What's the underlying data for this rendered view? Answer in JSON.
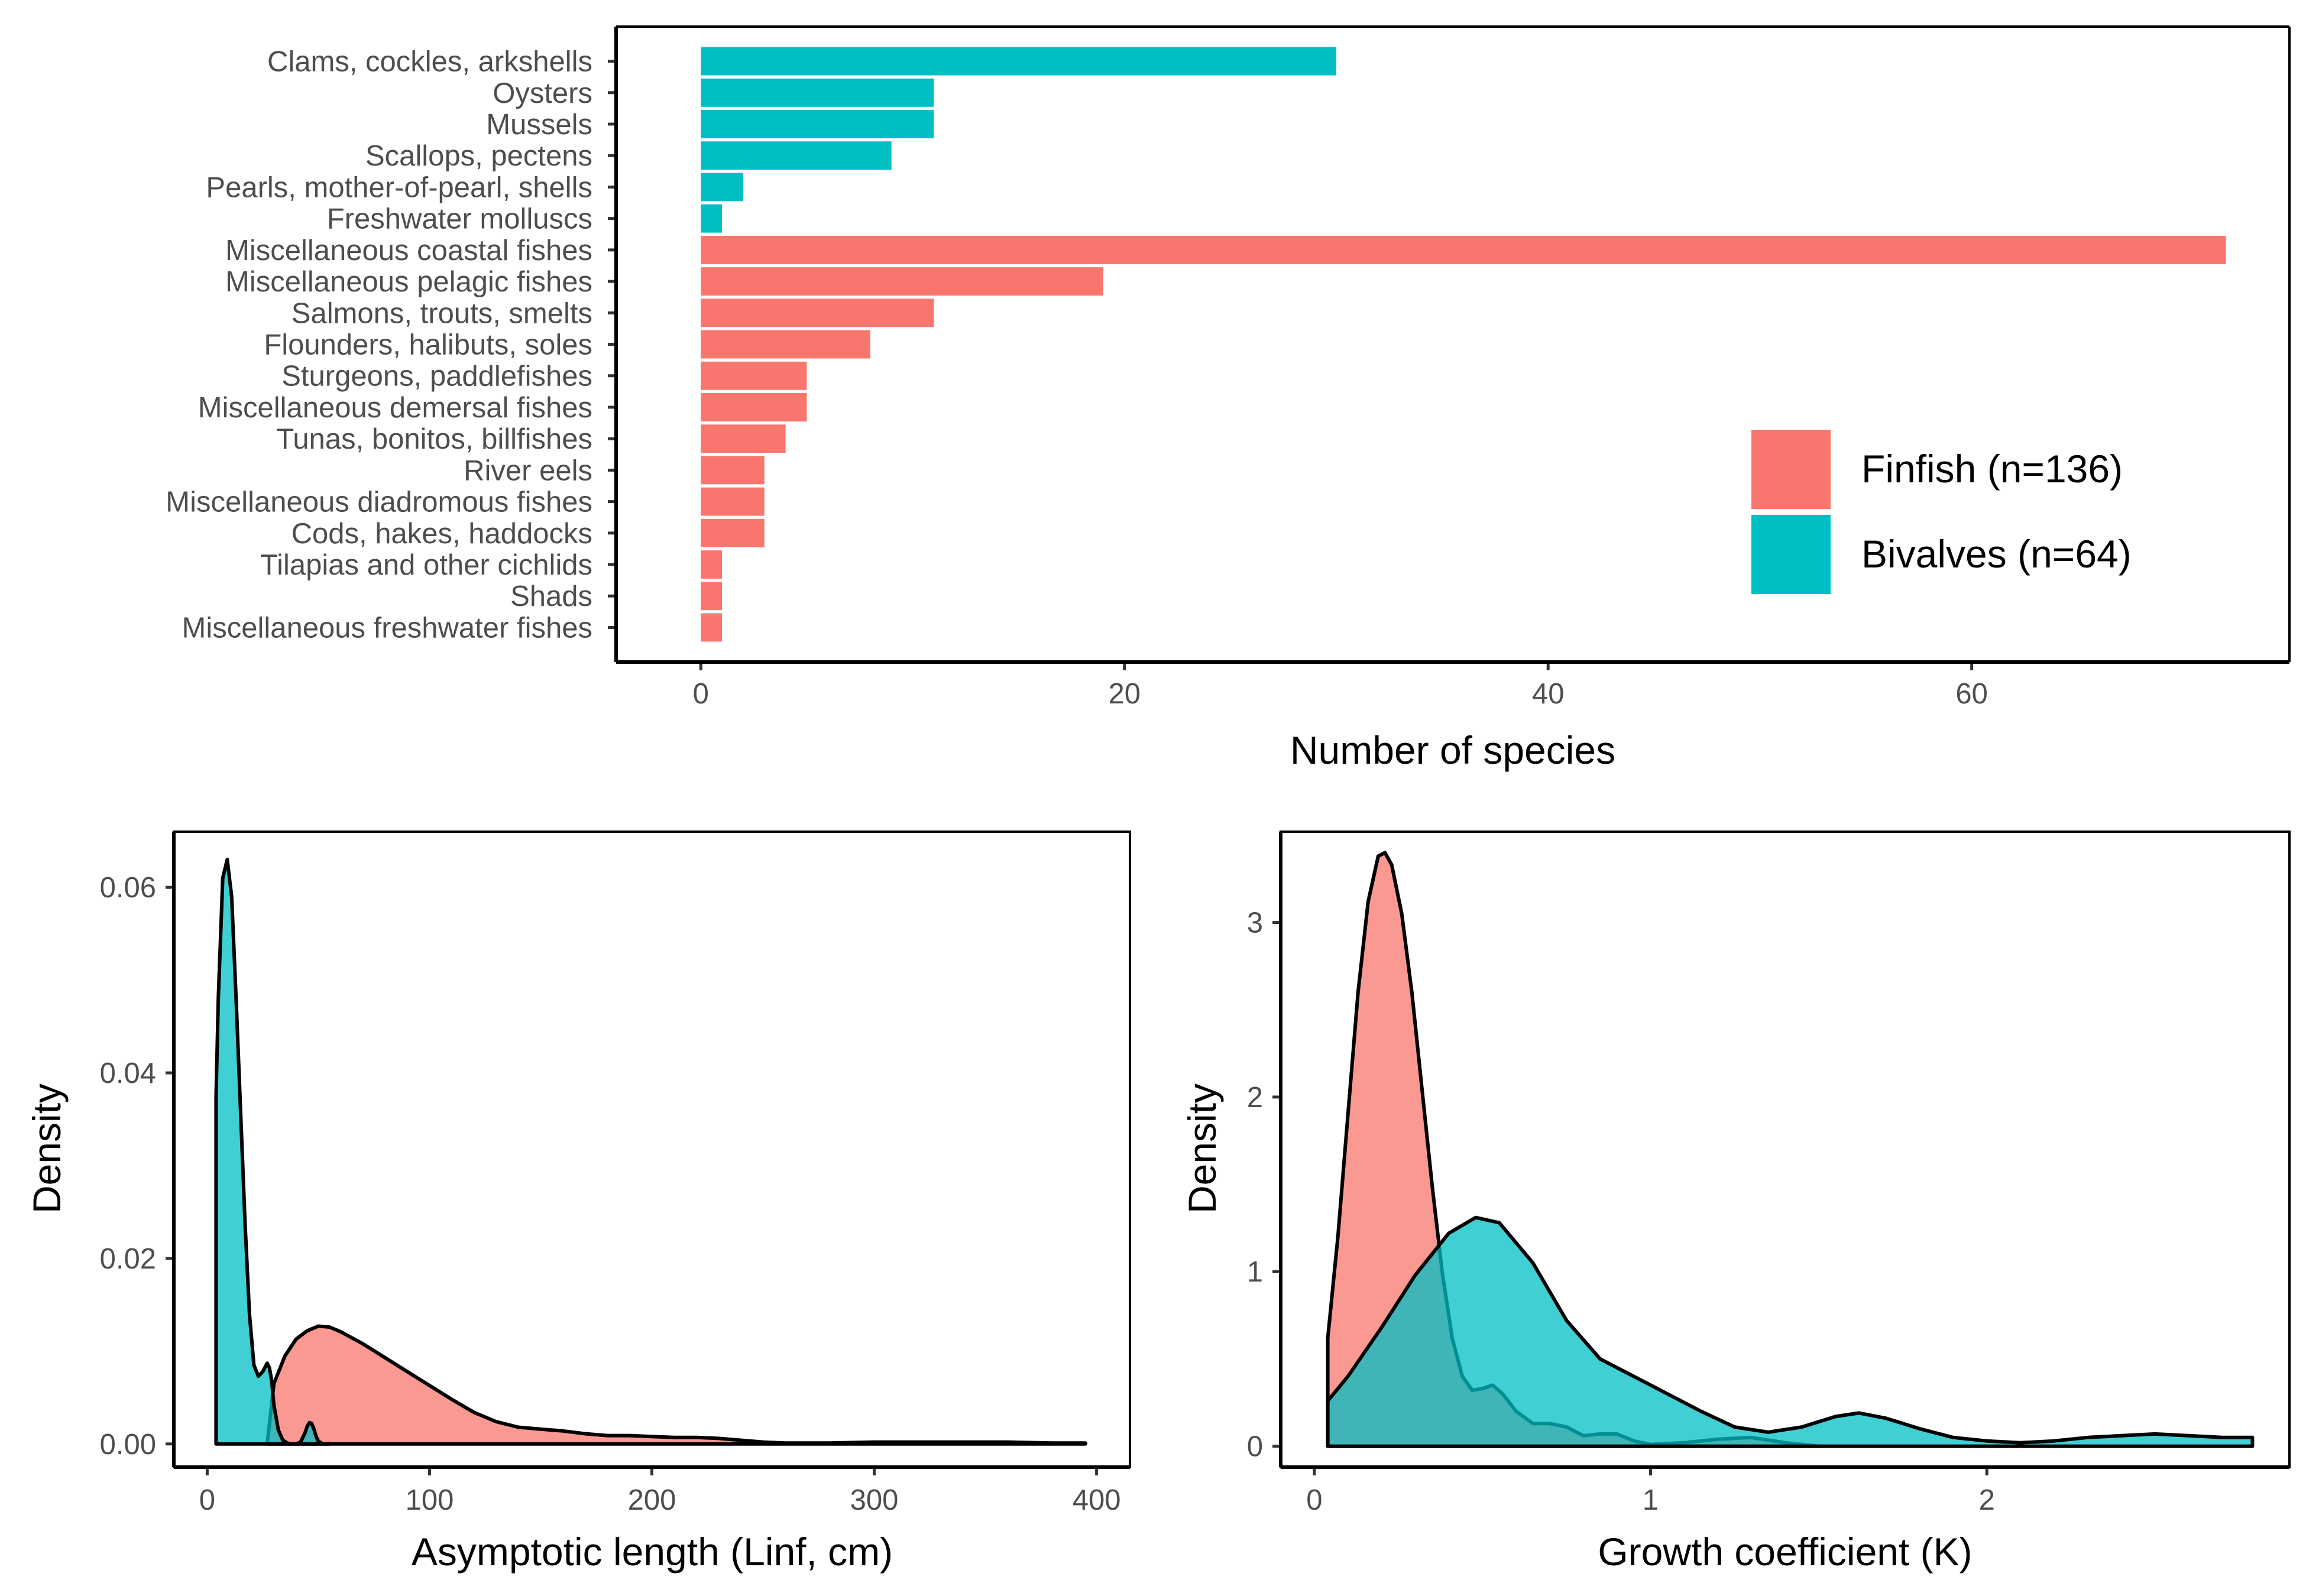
{
  "colors": {
    "finfish": "#F8766D",
    "bivalves": "#00BFC4",
    "outline": "#000000",
    "tick_text": "#4d4d4d"
  },
  "legend": {
    "position": "bottom-right",
    "items": [
      {
        "key": "finfish",
        "label": "Finfish (n=136)"
      },
      {
        "key": "bivalves",
        "label": "Bivalves (n=64)"
      }
    ]
  },
  "chart_data": [
    {
      "type": "bar",
      "orientation": "horizontal",
      "xlabel": "Number of species",
      "ylabel": "",
      "xlim": [
        -4,
        75
      ],
      "xticks": [
        0,
        20,
        40,
        60
      ],
      "grid": false,
      "categories": [
        "Clams, cockles, arkshells",
        "Oysters",
        "Mussels",
        "Scallops, pectens",
        "Pearls, mother-of-pearl, shells",
        "Freshwater molluscs",
        "Miscellaneous coastal fishes",
        "Miscellaneous pelagic fishes",
        "Salmons, trouts, smelts",
        "Flounders, halibuts, soles",
        "Sturgeons, paddlefishes",
        "Miscellaneous demersal fishes",
        "Tunas, bonitos, billfishes",
        "River eels",
        "Miscellaneous diadromous fishes",
        "Cods, hakes, haddocks",
        "Tilapias and other cichlids",
        "Shads",
        "Miscellaneous freshwater fishes"
      ],
      "values": [
        30,
        11,
        11,
        9,
        2,
        1,
        72,
        19,
        11,
        8,
        5,
        5,
        4,
        3,
        3,
        3,
        1,
        1,
        1
      ],
      "group": [
        "bivalves",
        "bivalves",
        "bivalves",
        "bivalves",
        "bivalves",
        "bivalves",
        "finfish",
        "finfish",
        "finfish",
        "finfish",
        "finfish",
        "finfish",
        "finfish",
        "finfish",
        "finfish",
        "finfish",
        "finfish",
        "finfish",
        "finfish"
      ]
    },
    {
      "type": "area",
      "subtype": "density",
      "xlabel": "Asymptotic length (Linf, cm)",
      "ylabel": "Density",
      "xlim": [
        -15,
        415
      ],
      "ylim": [
        -0.0025,
        0.066
      ],
      "xticks": [
        0,
        100,
        200,
        300,
        400
      ],
      "yticks": [
        0.0,
        0.02,
        0.04,
        0.06
      ],
      "ytick_labels": [
        "0.00",
        "0.02",
        "0.04",
        "0.06"
      ],
      "grid": false,
      "series": [
        {
          "key": "finfish",
          "x": [
            27,
            30,
            35,
            40,
            45,
            50,
            55,
            60,
            70,
            80,
            90,
            100,
            110,
            120,
            130,
            140,
            150,
            160,
            170,
            180,
            190,
            200,
            210,
            220,
            230,
            240,
            250,
            260,
            280,
            300,
            320,
            340,
            360,
            380,
            395
          ],
          "y": [
            0.0,
            0.0065,
            0.0095,
            0.0113,
            0.0122,
            0.0127,
            0.0126,
            0.0121,
            0.0108,
            0.0093,
            0.0078,
            0.0063,
            0.0048,
            0.0034,
            0.0024,
            0.0018,
            0.0016,
            0.0014,
            0.0011,
            0.0009,
            0.0009,
            0.0008,
            0.0007,
            0.0007,
            0.0006,
            0.0004,
            0.0002,
            0.0001,
            0.0001,
            0.0002,
            0.0002,
            0.0002,
            0.0002,
            0.0001,
            0.0001
          ]
        },
        {
          "key": "bivalves",
          "x": [
            4,
            5,
            7,
            9,
            11,
            13,
            15,
            17,
            19,
            21,
            23,
            25,
            27,
            28,
            29,
            30,
            32,
            34,
            36,
            38,
            40,
            42,
            44,
            45,
            46,
            47,
            48,
            49,
            50,
            52,
            55
          ],
          "y": [
            0.0375,
            0.048,
            0.061,
            0.063,
            0.059,
            0.048,
            0.036,
            0.024,
            0.014,
            0.0085,
            0.0073,
            0.0078,
            0.0087,
            0.0082,
            0.0068,
            0.0042,
            0.0015,
            0.0004,
            0.0001,
            0.0,
            0.0,
            0.0002,
            0.0012,
            0.0019,
            0.0023,
            0.0022,
            0.0016,
            0.0008,
            0.0003,
            0.0,
            0.0
          ]
        }
      ]
    },
    {
      "type": "area",
      "subtype": "density",
      "xlabel": "Growth coefficient (K)",
      "ylabel": "Density",
      "xlim": [
        -0.1,
        2.9
      ],
      "ylim": [
        -0.12,
        3.52
      ],
      "xticks": [
        0,
        1,
        2
      ],
      "yticks": [
        0,
        1,
        2,
        3
      ],
      "grid": false,
      "series": [
        {
          "key": "finfish",
          "x": [
            0.04,
            0.07,
            0.1,
            0.13,
            0.16,
            0.19,
            0.21,
            0.23,
            0.26,
            0.29,
            0.32,
            0.35,
            0.38,
            0.41,
            0.44,
            0.47,
            0.5,
            0.53,
            0.56,
            0.6,
            0.65,
            0.7,
            0.75,
            0.8,
            0.85,
            0.9,
            0.95,
            1.0,
            1.1,
            1.2,
            1.3,
            1.4,
            1.5
          ],
          "y": [
            0.62,
            1.2,
            1.9,
            2.6,
            3.12,
            3.38,
            3.4,
            3.33,
            3.05,
            2.6,
            2.05,
            1.5,
            1.0,
            0.62,
            0.4,
            0.32,
            0.33,
            0.35,
            0.3,
            0.2,
            0.13,
            0.13,
            0.11,
            0.06,
            0.07,
            0.07,
            0.03,
            0.01,
            0.02,
            0.04,
            0.05,
            0.02,
            0.0
          ]
        },
        {
          "key": "bivalves",
          "x": [
            0.04,
            0.1,
            0.2,
            0.3,
            0.4,
            0.48,
            0.55,
            0.65,
            0.75,
            0.85,
            0.95,
            1.05,
            1.15,
            1.25,
            1.35,
            1.45,
            1.55,
            1.62,
            1.7,
            1.8,
            1.9,
            2.0,
            2.1,
            2.2,
            2.3,
            2.4,
            2.5,
            2.6,
            2.7,
            2.79
          ],
          "y": [
            0.26,
            0.4,
            0.68,
            0.98,
            1.22,
            1.31,
            1.28,
            1.05,
            0.72,
            0.5,
            0.4,
            0.3,
            0.2,
            0.11,
            0.08,
            0.11,
            0.17,
            0.19,
            0.16,
            0.1,
            0.05,
            0.03,
            0.02,
            0.03,
            0.05,
            0.06,
            0.07,
            0.06,
            0.05,
            0.05
          ]
        }
      ]
    }
  ]
}
